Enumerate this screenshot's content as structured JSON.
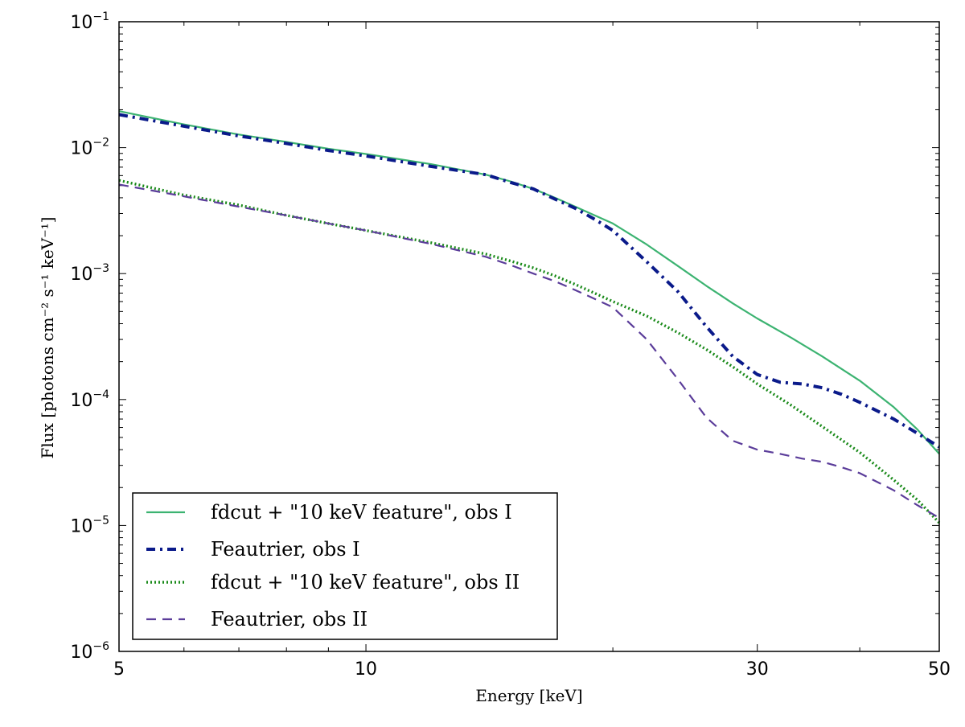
{
  "chart_data": {
    "type": "line",
    "xscale": "log",
    "yscale": "log",
    "xlim": [
      5,
      50
    ],
    "ylim": [
      1e-06,
      0.1
    ],
    "xlabel": "Energy  [keV]",
    "ylabel": "Flux  [photons cm⁻² s⁻¹ keV⁻¹]",
    "legend_position": "lower-left",
    "x_ticks": [
      {
        "value": 5,
        "label": "5"
      },
      {
        "value": 10,
        "label": "10"
      },
      {
        "value": 30,
        "label": "30"
      },
      {
        "value": 50,
        "label": "50"
      }
    ],
    "y_ticks": [
      {
        "value": 0.1,
        "base": "10",
        "exp": "−1"
      },
      {
        "value": 0.01,
        "base": "10",
        "exp": "−2"
      },
      {
        "value": 0.001,
        "base": "10",
        "exp": "−3"
      },
      {
        "value": 0.0001,
        "base": "10",
        "exp": "−4"
      },
      {
        "value": 1e-05,
        "base": "10",
        "exp": "−5"
      },
      {
        "value": 1e-06,
        "base": "10",
        "exp": "−6"
      }
    ],
    "series": [
      {
        "name": "fdcut + \"10 keV feature\",  obs I",
        "style": "solid",
        "color": "#3cb371",
        "x": [
          5,
          6,
          7,
          8,
          9,
          10,
          12,
          14,
          15,
          16,
          17,
          18,
          19,
          20,
          22,
          24,
          26,
          28,
          30,
          33,
          36,
          40,
          44,
          47,
          50
        ],
        "y": [
          0.0195,
          0.0153,
          0.0127,
          0.0111,
          0.0098,
          0.0089,
          0.0074,
          0.0061,
          0.0054,
          0.0047,
          0.004,
          0.0034,
          0.0029,
          0.0025,
          0.0017,
          0.00115,
          0.0008,
          0.00058,
          0.00044,
          0.00031,
          0.00022,
          0.000141,
          8.7e-05,
          5.8e-05,
          3.7e-05
        ]
      },
      {
        "name": "Feautrier, obs I",
        "style": "dashdot",
        "color": "#0a1a8a",
        "x": [
          5,
          6,
          7,
          8,
          9,
          10,
          12,
          14,
          15,
          16,
          17,
          18,
          19,
          20,
          22,
          24,
          26,
          28,
          30,
          32,
          34,
          36,
          38,
          40,
          44,
          47,
          50
        ],
        "y": [
          0.0183,
          0.0148,
          0.0124,
          0.0108,
          0.0095,
          0.0086,
          0.0071,
          0.0061,
          0.0053,
          0.0047,
          0.0039,
          0.0033,
          0.0027,
          0.0022,
          0.00124,
          0.00072,
          0.00038,
          0.00022,
          0.000158,
          0.000137,
          0.000133,
          0.000124,
          0.00011,
          9.5e-05,
          7e-05,
          5.4e-05,
          4.2e-05
        ]
      },
      {
        "name": "fdcut + \"10 keV feature\",  obs II",
        "style": "dotted",
        "color": "#1a8a1a",
        "x": [
          5,
          6,
          7,
          8,
          9,
          10,
          12,
          14,
          15,
          16,
          17,
          18,
          19,
          20,
          22,
          24,
          26,
          28,
          30,
          33,
          36,
          40,
          44,
          47,
          50
        ],
        "y": [
          0.0055,
          0.0042,
          0.0035,
          0.0029,
          0.0025,
          0.0022,
          0.00176,
          0.00143,
          0.00126,
          0.00111,
          0.00096,
          0.00082,
          0.0007,
          0.0006,
          0.00046,
          0.00034,
          0.00025,
          0.000182,
          0.000133,
          9e-05,
          6.1e-05,
          3.8e-05,
          2.3e-05,
          1.6e-05,
          1.05e-05
        ]
      },
      {
        "name": "Feautrier, obs II",
        "style": "dashed",
        "color": "#5b3d9a",
        "x": [
          5,
          6,
          7,
          8,
          9,
          10,
          12,
          14,
          15,
          16,
          17,
          18,
          19,
          20,
          22,
          24,
          26,
          28,
          30,
          32,
          34,
          36,
          38,
          40,
          44,
          47,
          50
        ],
        "y": [
          0.0051,
          0.0041,
          0.0034,
          0.0029,
          0.0025,
          0.0022,
          0.00172,
          0.00136,
          0.00117,
          0.001,
          0.00087,
          0.00074,
          0.00063,
          0.00054,
          0.0003,
          0.000145,
          7.2e-05,
          4.7e-05,
          4e-05,
          3.7e-05,
          3.4e-05,
          3.2e-05,
          2.9e-05,
          2.6e-05,
          1.9e-05,
          1.45e-05,
          1.15e-05
        ]
      }
    ]
  }
}
